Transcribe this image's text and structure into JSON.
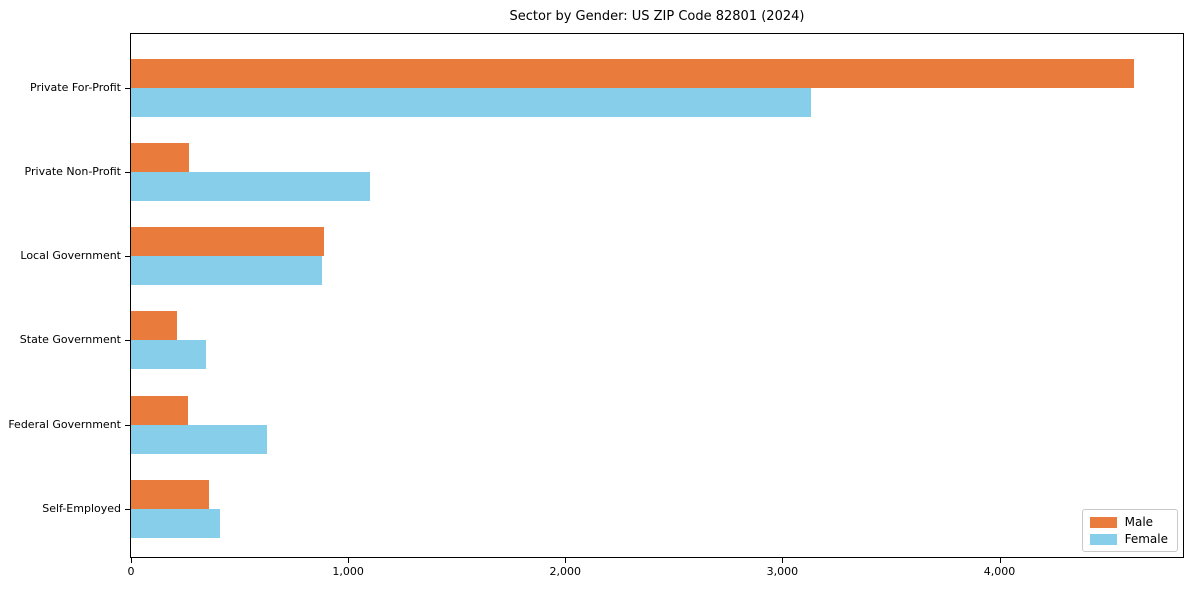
{
  "title": "Sector by Gender: US ZIP Code 82801 (2024)",
  "chart_data": {
    "type": "bar",
    "orientation": "horizontal",
    "title": "Sector by Gender: US ZIP Code 82801 (2024)",
    "xlabel": "",
    "ylabel": "",
    "categories": [
      "Private For-Profit",
      "Private Non-Profit",
      "Local Government",
      "State Government",
      "Federal Government",
      "Self-Employed"
    ],
    "series": [
      {
        "name": "Male",
        "color": "#E97C3C",
        "values": [
          4620,
          265,
          890,
          210,
          260,
          360
        ]
      },
      {
        "name": "Female",
        "color": "#87CEEB",
        "values": [
          3130,
          1100,
          880,
          345,
          625,
          410
        ]
      }
    ],
    "xlim": [
      0,
      4845
    ],
    "xticks": [
      0,
      1000,
      2000,
      3000,
      4000
    ],
    "xtick_labels": [
      "0",
      "1,000",
      "2,000",
      "3,000",
      "4,000"
    ],
    "grid": false,
    "legend_position": "lower right",
    "spine_color": "#000000",
    "background_color": "#ffffff"
  }
}
